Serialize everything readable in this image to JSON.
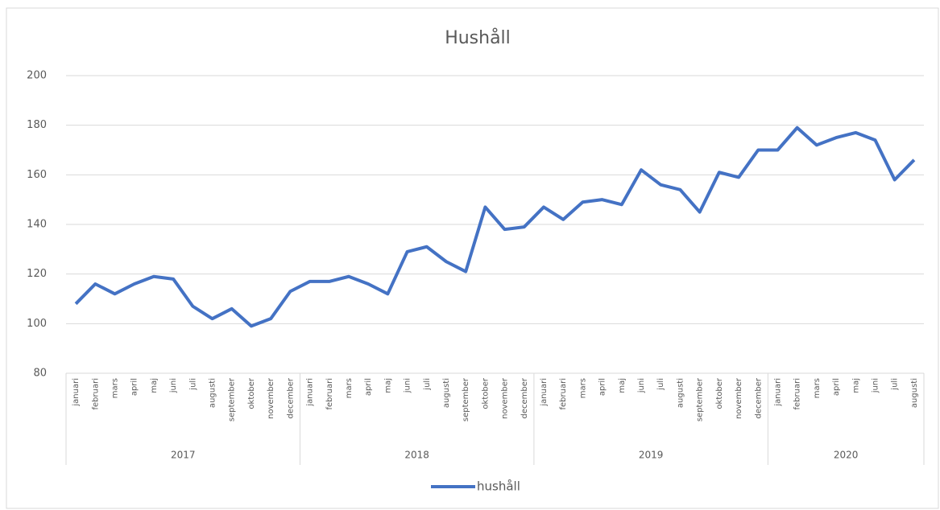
{
  "chart_data": {
    "type": "line",
    "title": "Hushåll",
    "category_groups": [
      {
        "name": "2017",
        "categories": [
          "januari",
          "februari",
          "mars",
          "april",
          "maj",
          "juni",
          "juli",
          "augusti",
          "september",
          "oktober",
          "november",
          "december"
        ]
      },
      {
        "name": "2018",
        "categories": [
          "januari",
          "februari",
          "mars",
          "april",
          "maj",
          "juni",
          "juli",
          "augusti",
          "september",
          "oktober",
          "november",
          "december"
        ]
      },
      {
        "name": "2019",
        "categories": [
          "januari",
          "februari",
          "mars",
          "april",
          "maj",
          "juni",
          "juli",
          "augusti",
          "september",
          "oktober",
          "november",
          "december"
        ]
      },
      {
        "name": "2020",
        "categories": [
          "januari",
          "februari",
          "mars",
          "april",
          "maj",
          "juni",
          "juli",
          "augusti"
        ]
      }
    ],
    "series": [
      {
        "name": "hushåll",
        "color": "#4472c4",
        "values": [
          108,
          116,
          112,
          116,
          119,
          118,
          107,
          102,
          106,
          99,
          102,
          113,
          117,
          117,
          119,
          116,
          112,
          129,
          131,
          125,
          121,
          147,
          138,
          139,
          147,
          142,
          149,
          150,
          148,
          162,
          156,
          154,
          145,
          161,
          159,
          170,
          170,
          179,
          172,
          175,
          177,
          174,
          158,
          166
        ]
      }
    ],
    "ylim": [
      80,
      200
    ],
    "yticks": [
      80,
      100,
      120,
      140,
      160,
      180,
      200
    ],
    "grid": true,
    "legend": "bottom"
  }
}
